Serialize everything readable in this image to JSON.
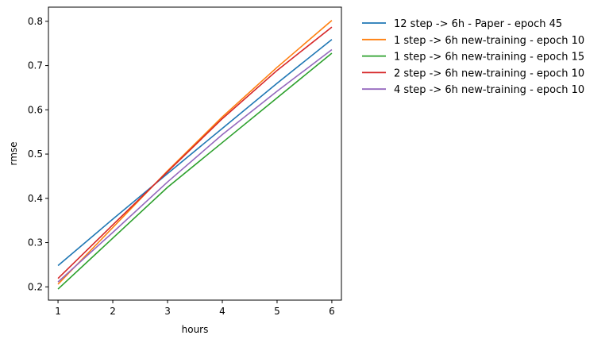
{
  "chart_data": {
    "type": "line",
    "title": "",
    "xlabel": "hours",
    "ylabel": "rmse",
    "x": [
      1,
      2,
      3,
      4,
      5,
      6
    ],
    "xlim": [
      0.825,
      6.175
    ],
    "ylim": [
      0.17,
      0.832
    ],
    "xticks": [
      1,
      2,
      3,
      4,
      5,
      6
    ],
    "yticks": [
      0.2,
      0.3,
      0.4,
      0.5,
      0.6,
      0.7,
      0.8
    ],
    "grid": false,
    "legend_position": "outside-right-top",
    "series": [
      {
        "name": "12 step -> 6h - Paper - epoch 45",
        "color": "#1f77b4",
        "values": [
          0.248,
          0.353,
          0.456,
          0.558,
          0.66,
          0.759
        ]
      },
      {
        "name": "1 step -> 6h new-training - epoch 10",
        "color": "#ff7f0e",
        "values": [
          0.206,
          0.334,
          0.462,
          0.584,
          0.696,
          0.802
        ]
      },
      {
        "name": "1 step -> 6h new-training - epoch 15",
        "color": "#2ca02c",
        "values": [
          0.195,
          0.31,
          0.425,
          0.526,
          0.627,
          0.728
        ]
      },
      {
        "name": "2 step -> 6h new-training - epoch 10",
        "color": "#d62728",
        "values": [
          0.219,
          0.34,
          0.46,
          0.58,
          0.689,
          0.787
        ]
      },
      {
        "name": "4 step -> 6h new-training - epoch 10",
        "color": "#9467bd",
        "values": [
          0.211,
          0.323,
          0.437,
          0.544,
          0.642,
          0.736
        ]
      }
    ]
  }
}
